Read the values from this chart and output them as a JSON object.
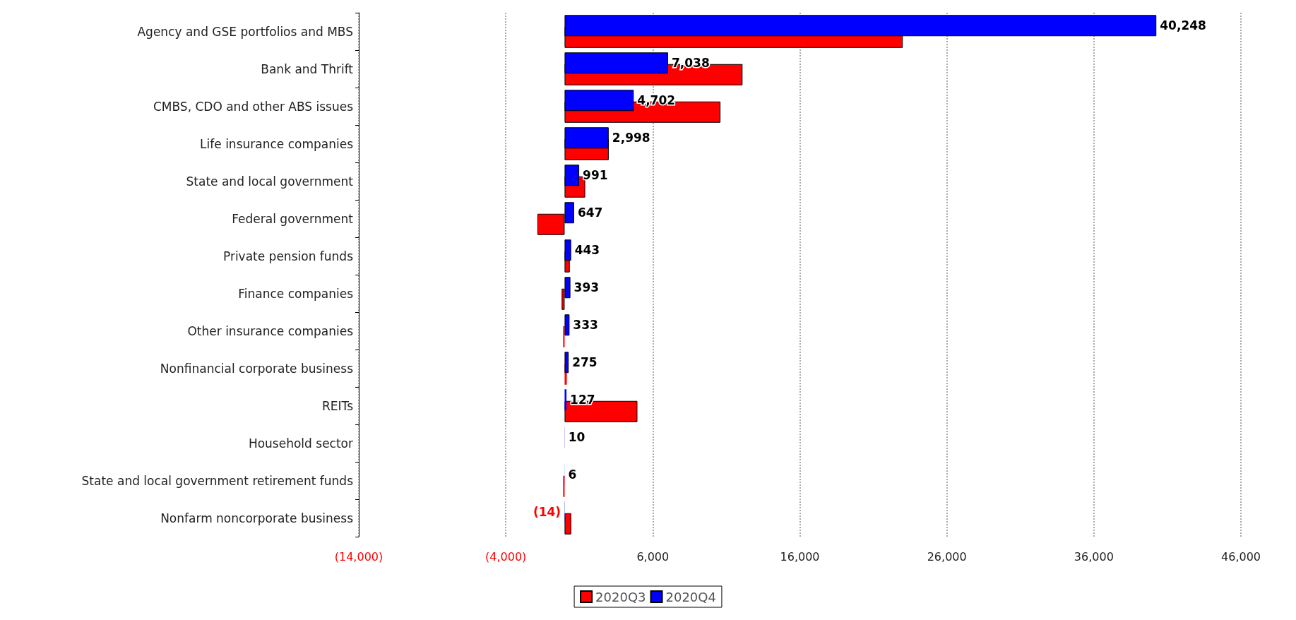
{
  "chart_data": {
    "type": "bar",
    "orientation": "horizontal",
    "categories": [
      "Agency and GSE portfolios and MBS",
      "Bank and Thrift",
      "CMBS, CDO and other ABS issues",
      "Life insurance companies",
      "State and local government",
      "Federal government",
      "Private pension funds",
      "Finance companies",
      "Other insurance companies",
      "Nonfinancial corporate business",
      "REITs",
      "Household sector",
      "State and local government retirement funds",
      "Nonfarm noncorporate business"
    ],
    "series": [
      {
        "name": "2020Q3",
        "color": "#ff0000",
        "values": [
          23000,
          12100,
          10600,
          3000,
          1400,
          -1850,
          350,
          -200,
          -100,
          150,
          4950,
          null,
          -100,
          450
        ]
      },
      {
        "name": "2020Q4",
        "color": "#0000ff",
        "values": [
          40248,
          7038,
          4702,
          2998,
          991,
          647,
          443,
          393,
          333,
          275,
          127,
          10,
          6,
          -14
        ],
        "value_labels": [
          "40,248",
          "7,038",
          "4,702",
          "2,998",
          "991",
          "647",
          "443",
          "393",
          "333",
          "275",
          "127",
          "10",
          "6",
          "(14)"
        ]
      }
    ],
    "xlim": [
      -14000,
      46000
    ],
    "xticks": [
      {
        "value": -14000,
        "label": "(14,000)"
      },
      {
        "value": -4000,
        "label": "(4,000)"
      },
      {
        "value": 6000,
        "label": "6,000"
      },
      {
        "value": 16000,
        "label": "16,000"
      },
      {
        "value": 26000,
        "label": "26,000"
      },
      {
        "value": 36000,
        "label": "36,000"
      },
      {
        "value": 46000,
        "label": "46,000"
      }
    ],
    "grid": "x",
    "legend": "bottom"
  }
}
